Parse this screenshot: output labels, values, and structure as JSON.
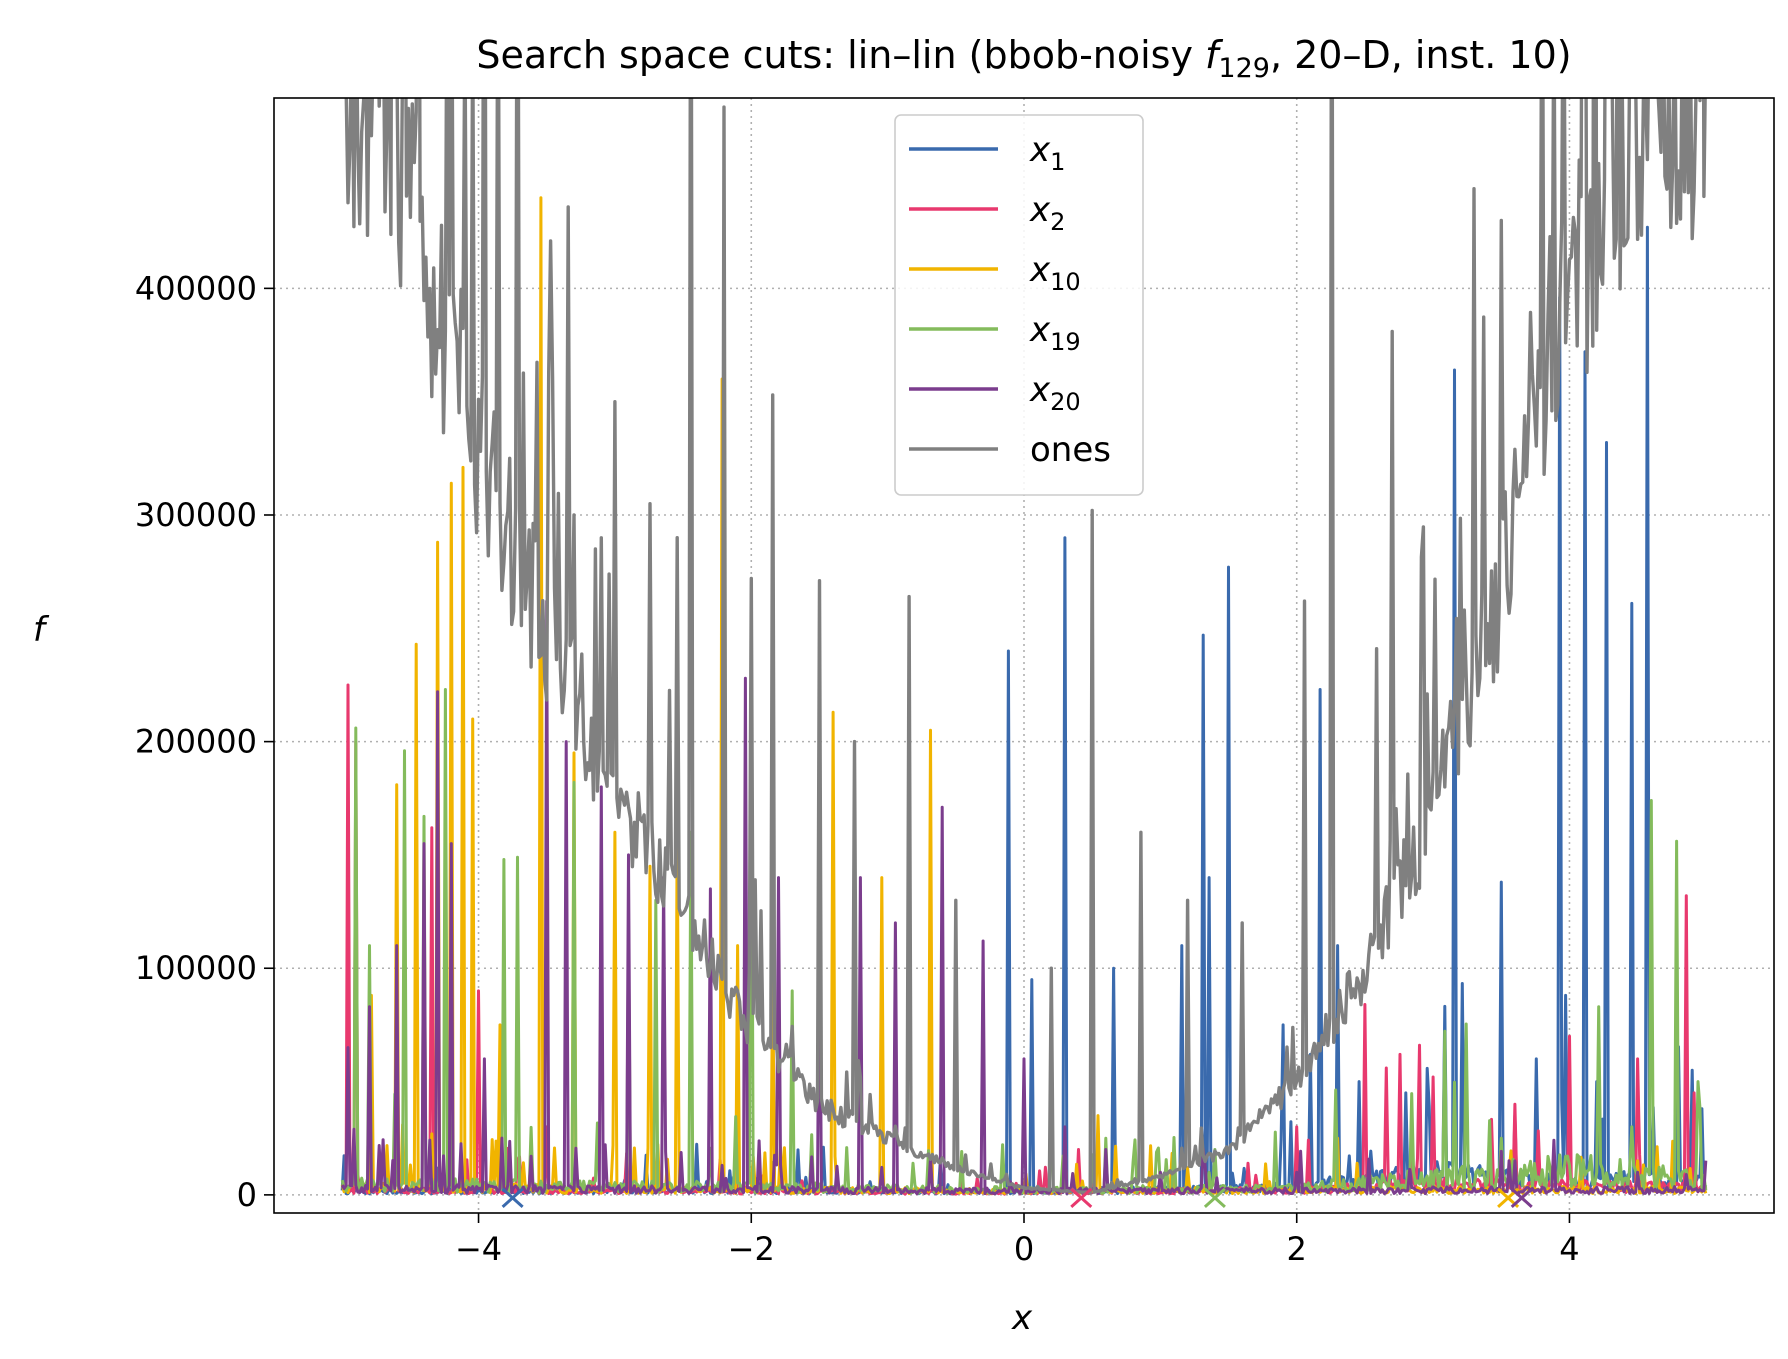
{
  "chart_data": {
    "type": "line",
    "title": {
      "prefix": "Search space cuts: lin–lin (bbob-noisy ",
      "f": "f",
      "sub": "129",
      "suffix": ", 20–D, inst. 10)"
    },
    "xlabel": "x",
    "ylabel": "f",
    "xlim": [
      -5.5,
      5.5
    ],
    "ylim": [
      -8000,
      484000
    ],
    "xticks": [
      -4,
      -2,
      0,
      2,
      4
    ],
    "xtick_labels": [
      "−4",
      "−2",
      "0",
      "2",
      "4"
    ],
    "yticks": [
      0,
      100000,
      200000,
      300000,
      400000
    ],
    "ytick_labels": [
      "0",
      "100000",
      "200000",
      "300000",
      "400000"
    ],
    "grid": true,
    "legend_position": "top-center",
    "series": [
      {
        "name": "x",
        "sub": "1",
        "color": "#3a6aad",
        "baseline": [
          [
            -5.0,
            1500
          ],
          [
            -2.0,
            1800
          ],
          [
            0.0,
            1200
          ],
          [
            2.0,
            3000
          ],
          [
            3.0,
            8000
          ],
          [
            4.0,
            6000
          ],
          [
            5.0,
            5000
          ]
        ],
        "peaks": [
          [
            -0.12,
            240000
          ],
          [
            0.05,
            95000
          ],
          [
            0.3,
            290000
          ],
          [
            0.65,
            100000
          ],
          [
            1.15,
            110000
          ],
          [
            1.32,
            247000
          ],
          [
            1.35,
            140000
          ],
          [
            1.5,
            277000
          ],
          [
            1.9,
            75000
          ],
          [
            2.1,
            62000
          ],
          [
            2.17,
            223000
          ],
          [
            2.3,
            110000
          ],
          [
            2.45,
            50000
          ],
          [
            2.8,
            45000
          ],
          [
            3.15,
            364000
          ],
          [
            3.5,
            138000
          ],
          [
            3.6,
            35000
          ],
          [
            3.75,
            60000
          ],
          [
            3.93,
            396000
          ],
          [
            3.97,
            88000
          ],
          [
            4.12,
            372000
          ],
          [
            4.27,
            332000
          ],
          [
            4.45,
            261000
          ],
          [
            4.57,
            427000
          ],
          [
            4.9,
            45000
          ],
          [
            4.97,
            38000
          ]
        ],
        "marker_x": -3.75
      },
      {
        "name": "x",
        "sub": "2",
        "color": "#e8396e",
        "baseline": [
          [
            -5.0,
            2000
          ],
          [
            -3.0,
            1500
          ],
          [
            0.0,
            1000
          ],
          [
            2.0,
            2000
          ],
          [
            3.0,
            4000
          ],
          [
            5.0,
            3000
          ]
        ],
        "peaks": [
          [
            -4.95,
            225000
          ],
          [
            -4.9,
            200000
          ],
          [
            -4.6,
            127000
          ],
          [
            -4.35,
            162000
          ],
          [
            -4.0,
            90000
          ],
          [
            -3.5,
            30000
          ],
          [
            0.4,
            20000
          ],
          [
            2.0,
            30000
          ],
          [
            2.5,
            84000
          ],
          [
            2.65,
            56000
          ],
          [
            2.75,
            62000
          ],
          [
            2.9,
            66000
          ],
          [
            3.0,
            52000
          ],
          [
            3.6,
            40000
          ],
          [
            4.0,
            70000
          ],
          [
            4.5,
            60000
          ],
          [
            4.85,
            132000
          ],
          [
            4.92,
            45000
          ]
        ],
        "marker_x": 0.42
      },
      {
        "name": "x",
        "sub": "10",
        "color": "#f1b400",
        "baseline": [
          [
            -5.0,
            3000
          ],
          [
            -2.0,
            2000
          ],
          [
            0.0,
            1500
          ],
          [
            2.0,
            2000
          ],
          [
            5.0,
            2000
          ]
        ],
        "peaks": [
          [
            -4.78,
            88000
          ],
          [
            -4.6,
            181000
          ],
          [
            -4.45,
            243000
          ],
          [
            -4.3,
            288000
          ],
          [
            -4.2,
            314000
          ],
          [
            -4.12,
            321000
          ],
          [
            -4.05,
            210000
          ],
          [
            -3.85,
            75000
          ],
          [
            -3.55,
            440000
          ],
          [
            -3.3,
            195000
          ],
          [
            -3.0,
            160000
          ],
          [
            -2.75,
            145000
          ],
          [
            -2.55,
            162000
          ],
          [
            -2.22,
            360000
          ],
          [
            -2.1,
            110000
          ],
          [
            -1.85,
            100000
          ],
          [
            -1.4,
            213000
          ],
          [
            -1.05,
            140000
          ],
          [
            -0.68,
            205000
          ],
          [
            0.3,
            25000
          ],
          [
            0.55,
            35000
          ],
          [
            2.3,
            25000
          ],
          [
            3.55,
            10000
          ],
          [
            4.5,
            15000
          ]
        ],
        "marker_x": 3.55
      },
      {
        "name": "x",
        "sub": "19",
        "color": "#84bb5c",
        "baseline": [
          [
            -5.0,
            4000
          ],
          [
            -2.0,
            3000
          ],
          [
            0.0,
            2000
          ],
          [
            2.0,
            2500
          ],
          [
            4.0,
            10000
          ],
          [
            5.0,
            6000
          ]
        ],
        "peaks": [
          [
            -4.9,
            206000
          ],
          [
            -4.8,
            110000
          ],
          [
            -4.55,
            196000
          ],
          [
            -4.4,
            167000
          ],
          [
            -4.25,
            223000
          ],
          [
            -3.82,
            148000
          ],
          [
            -3.72,
            149000
          ],
          [
            -3.3,
            182000
          ],
          [
            -2.9,
            120000
          ],
          [
            -2.7,
            130000
          ],
          [
            -2.45,
            160000
          ],
          [
            -2.0,
            234000
          ],
          [
            -1.7,
            90000
          ],
          [
            0.2,
            40000
          ],
          [
            0.6,
            25000
          ],
          [
            1.4,
            20000
          ],
          [
            3.5,
            25000
          ],
          [
            4.45,
            30000
          ],
          [
            4.6,
            174000
          ],
          [
            4.78,
            156000
          ],
          [
            4.95,
            50000
          ]
        ],
        "marker_x": 1.4
      },
      {
        "name": "x",
        "sub": "20",
        "color": "#7b3d8d",
        "baseline": [
          [
            -5.0,
            2500
          ],
          [
            -2.0,
            2000
          ],
          [
            0.0,
            1500
          ],
          [
            2.0,
            1800
          ],
          [
            5.0,
            2000
          ]
        ],
        "peaks": [
          [
            -4.95,
            65000
          ],
          [
            -4.8,
            83000
          ],
          [
            -4.6,
            110000
          ],
          [
            -4.4,
            155000
          ],
          [
            -4.3,
            222000
          ],
          [
            -4.2,
            155000
          ],
          [
            -3.95,
            60000
          ],
          [
            -3.5,
            262000
          ],
          [
            -3.35,
            200000
          ],
          [
            -3.1,
            180000
          ],
          [
            -2.9,
            150000
          ],
          [
            -2.65,
            140000
          ],
          [
            -2.3,
            135000
          ],
          [
            -2.05,
            228000
          ],
          [
            -1.8,
            140000
          ],
          [
            -1.5,
            131000
          ],
          [
            -1.2,
            140000
          ],
          [
            -0.95,
            120000
          ],
          [
            -0.6,
            171000
          ],
          [
            -0.3,
            112000
          ],
          [
            0.0,
            60000
          ],
          [
            0.3,
            30000
          ],
          [
            0.6,
            20000
          ],
          [
            1.0,
            10000
          ],
          [
            2.0,
            10000
          ],
          [
            3.6,
            15000
          ],
          [
            4.5,
            10000
          ]
        ],
        "marker_x": 3.65
      },
      {
        "name": "ones",
        "sub": "",
        "color": "#808080",
        "envelope": [
          [
            -4.67,
            484000
          ],
          [
            -4.5,
            440000
          ],
          [
            -4.0,
            330000
          ],
          [
            -3.5,
            250000
          ],
          [
            -3.0,
            180000
          ],
          [
            -2.5,
            125000
          ],
          [
            -2.0,
            75000
          ],
          [
            -1.5,
            40000
          ],
          [
            -1.0,
            25000
          ],
          [
            -0.5,
            12000
          ],
          [
            0.0,
            3000
          ],
          [
            0.5,
            1000
          ],
          [
            1.0,
            8000
          ],
          [
            1.5,
            20000
          ],
          [
            2.0,
            50000
          ],
          [
            2.5,
            100000
          ],
          [
            3.0,
            170000
          ],
          [
            3.5,
            270000
          ],
          [
            4.0,
            400000
          ],
          [
            4.5,
            484000
          ]
        ],
        "peaks": [
          [
            -4.2,
            600000
          ],
          [
            -4.1,
            520000
          ],
          [
            -3.95,
            700000
          ],
          [
            -3.72,
            650000
          ],
          [
            -3.45,
            360000
          ],
          [
            -3.3,
            300000
          ],
          [
            -3.15,
            285000
          ],
          [
            -3.0,
            350000
          ],
          [
            -2.75,
            305000
          ],
          [
            -2.55,
            290000
          ],
          [
            -2.45,
            650000
          ],
          [
            -2.2,
            480000
          ],
          [
            -2.0,
            272000
          ],
          [
            -1.85,
            353000
          ],
          [
            -1.5,
            271000
          ],
          [
            -1.25,
            200000
          ],
          [
            -0.85,
            264000
          ],
          [
            -0.5,
            130000
          ],
          [
            0.2,
            100000
          ],
          [
            0.5,
            302000
          ],
          [
            0.85,
            160000
          ],
          [
            1.2,
            130000
          ],
          [
            1.6,
            120000
          ],
          [
            2.05,
            262000
          ],
          [
            2.25,
            650000
          ],
          [
            2.58,
            241000
          ],
          [
            2.7,
            381000
          ],
          [
            2.95,
            221000
          ],
          [
            3.3,
            444000
          ],
          [
            3.5,
            430000
          ],
          [
            3.8,
            600000
          ],
          [
            4.1,
            700000
          ],
          [
            4.35,
            650000
          ]
        ]
      }
    ]
  }
}
